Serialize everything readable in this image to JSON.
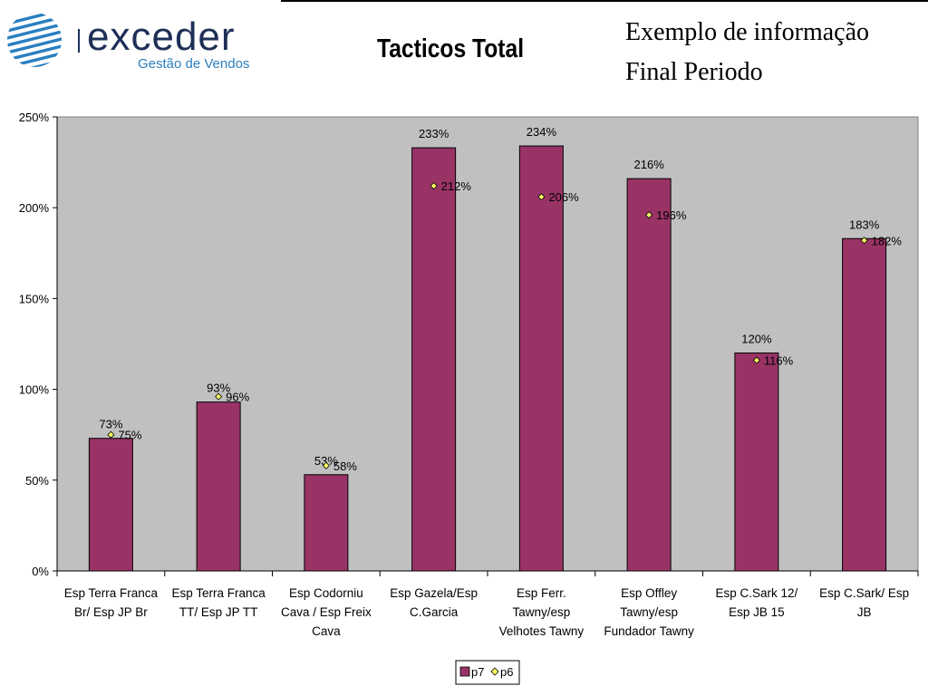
{
  "brand": {
    "name": "exceder",
    "tagline": "Gestão de Vendos",
    "colors": {
      "primary": "#1e2f57",
      "accent": "#2a7fc0"
    }
  },
  "header": {
    "line1": "Exemplo de informação",
    "line2": "Final Periodo"
  },
  "chart_data": {
    "type": "bar",
    "title": "Tacticos Total",
    "categories": [
      [
        "Esp Terra Franca",
        "Br/ Esp JP Br"
      ],
      [
        "Esp Terra Franca",
        "TT/ Esp JP TT"
      ],
      [
        "Esp Codorniu",
        "Cava / Esp Freix",
        "Cava"
      ],
      [
        "Esp Gazela/Esp",
        "C.Garcia"
      ],
      [
        "Esp Ferr.",
        "Tawny/esp",
        "Velhotes Tawny"
      ],
      [
        "Esp Offley",
        "Tawny/esp",
        "Fundador Tawny"
      ],
      [
        "Esp C.Sark 12/",
        "Esp JB 15"
      ],
      [
        "Esp C.Sark/ Esp",
        "JB"
      ]
    ],
    "series": [
      {
        "name": "p7",
        "kind": "bar",
        "color": "#993366",
        "values": [
          73,
          93,
          53,
          233,
          234,
          216,
          120,
          183
        ],
        "labels": [
          "73%",
          "93%",
          "53%",
          "233%",
          "234%",
          "216%",
          "120%",
          "183%"
        ]
      },
      {
        "name": "p6",
        "kind": "marker",
        "color": "#ffff66",
        "values": [
          75,
          96,
          58,
          212,
          206,
          196,
          116,
          182
        ],
        "labels": [
          "75%",
          "96%",
          "58%",
          "212%",
          "206%",
          "196%",
          "116%",
          "182%"
        ]
      }
    ],
    "ylim": [
      0,
      250
    ],
    "yticks": [
      "0%",
      "50%",
      "100%",
      "150%",
      "200%",
      "250%"
    ],
    "plot_background": "#c0c0c0",
    "grid": false,
    "legend": "bottom-center"
  }
}
